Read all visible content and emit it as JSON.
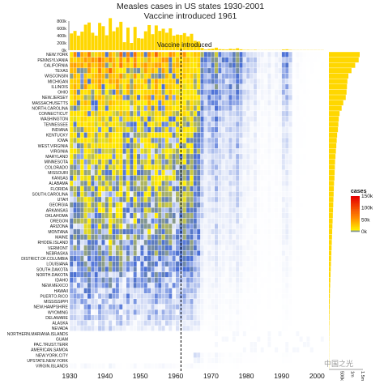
{
  "title_line1": "Measles cases in US states 1930-2001",
  "title_line2": "Vaccine introduced 1961",
  "vaccine_label": "Vaccine introduced",
  "legend_title": "cases",
  "legend_ticks": [
    "150k",
    "100k",
    "50k",
    "0k"
  ],
  "top_axis_ticks": [
    "800k",
    "600k",
    "400k",
    "200k",
    "0k"
  ],
  "right_axis_ticks": [
    "500k",
    "1m",
    "1.5m"
  ],
  "watermark": "中国之光",
  "colors": {
    "zero": "#ffffff",
    "low_blue": "#4a6fd6",
    "yellow": "#ffee00",
    "orange": "#ff8c00",
    "red": "#e60000",
    "bar": "#ffd700",
    "vline": "#000000"
  },
  "chart_data": [
    {
      "type": "heatmap",
      "title": "Measles cases in US states 1930-2001",
      "subtitle": "Vaccine introduced 1961",
      "xlabel": "",
      "ylabel": "",
      "x_ticks": [
        1930,
        1940,
        1950,
        1960,
        1970,
        1980,
        1990,
        2000
      ],
      "xlim": [
        1930,
        2001
      ],
      "vaccine_year": 1961,
      "color_scale_ticks": [
        0,
        50000,
        100000,
        150000
      ],
      "states": [
        "NEW.YORK",
        "PENNSYLVANIA",
        "CALIFORNIA",
        "TEXAS",
        "WISCONSIN",
        "MICHIGAN",
        "ILLINOIS",
        "OHIO",
        "NEW.JERSEY",
        "MASSACHUSETTS",
        "NORTH.CAROLINA",
        "CONNECTICUT",
        "WASHINGTON",
        "TENNESSEE",
        "INDIANA",
        "KENTUCKY",
        "IOWA",
        "WEST.VIRGINIA",
        "VIRGINIA",
        "MARYLAND",
        "MINNESOTA",
        "COLORADO",
        "MISSOURI",
        "KANSAS",
        "ALABAMA",
        "FLORIDA",
        "SOUTH.CAROLINA",
        "UTAH",
        "GEORGIA",
        "ARKANSAS",
        "OKLAHOMA",
        "OREGON",
        "ARIZONA",
        "MONTANA",
        "MAINE",
        "RHODE.ISLAND",
        "VERMONT",
        "NEBRASKA",
        "DISTRICT.OF.COLUMBIA",
        "LOUISIANA",
        "SOUTH.DAKOTA",
        "NORTH.DAKOTA",
        "IDAHO",
        "NEW.MEXICO",
        "HAWAII",
        "PUERTO.RICO",
        "MISSISSIPPI",
        "NEW.HAMPSHIRE",
        "WYOMING",
        "DELAWARE",
        "ALASKA",
        "NEVADA",
        "NORTHERN.MARIANA.ISLANDS",
        "GUAM",
        "PAC.TRUST.TERR",
        "AMERICAN.SAMOA",
        "NEW.YORK.CITY",
        "UPSTATE.NEW.YORK",
        "VIRGIN.ISLANDS"
      ],
      "state_totals": [
        1500000,
        1450000,
        1280000,
        1100000,
        950000,
        900000,
        880000,
        860000,
        820000,
        700000,
        620000,
        520000,
        480000,
        460000,
        440000,
        400000,
        380000,
        360000,
        340000,
        320000,
        300000,
        290000,
        280000,
        270000,
        250000,
        240000,
        230000,
        220000,
        210000,
        200000,
        190000,
        180000,
        170000,
        160000,
        150000,
        140000,
        130000,
        120000,
        110000,
        100000,
        90000,
        80000,
        70000,
        60000,
        50000,
        45000,
        40000,
        35000,
        30000,
        25000,
        20000,
        15000,
        12000,
        10000,
        8000,
        6000,
        5000,
        4000,
        3000
      ],
      "yearly_totals": [
        460000,
        530000,
        400000,
        510000,
        700000,
        760000,
        480000,
        400000,
        750000,
        660000,
        410000,
        880000,
        520000,
        630000,
        780000,
        220000,
        620000,
        200000,
        640000,
        330000,
        320000,
        520000,
        690000,
        440000,
        680000,
        530000,
        590000,
        480000,
        600000,
        400000,
        430000,
        420000,
        470000,
        380000,
        450000,
        260000,
        240000,
        60000,
        20000,
        35000,
        45000,
        70000,
        30000,
        25000,
        20000,
        40000,
        30000,
        55000,
        25000,
        10000,
        12000,
        8000,
        12000,
        3000,
        2500,
        2000,
        5000,
        1500,
        3000,
        3500,
        20000,
        25000,
        10000,
        300,
        1000,
        500,
        400,
        200,
        100,
        100,
        100,
        100
      ]
    }
  ]
}
